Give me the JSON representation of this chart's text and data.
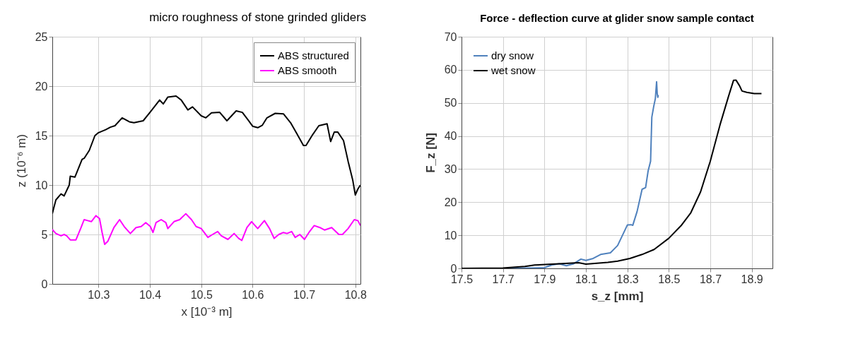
{
  "chart_data": [
    {
      "type": "line",
      "title": "micro roughness of stone grinded gliders",
      "xlabel": "x [10⁻³ m]",
      "ylabel": "z (10⁻⁶ m)",
      "xlim": [
        10.21,
        10.81
      ],
      "ylim": [
        0,
        25
      ],
      "xticks": [
        10.3,
        10.4,
        10.5,
        10.6,
        10.7,
        10.8
      ],
      "yticks": [
        0,
        5,
        10,
        15,
        20,
        25
      ],
      "grid": true,
      "legend": "top right",
      "series": [
        {
          "name": "ABS structured",
          "color": "#000000",
          "x": [
            10.21,
            10.217,
            10.227,
            10.233,
            10.243,
            10.245,
            10.254,
            10.268,
            10.272,
            10.282,
            10.293,
            10.3,
            10.314,
            10.323,
            10.332,
            10.346,
            10.36,
            10.369,
            10.387,
            10.401,
            10.419,
            10.426,
            10.435,
            10.451,
            10.461,
            10.474,
            10.483,
            10.5,
            10.509,
            10.52,
            10.536,
            10.55,
            10.568,
            10.58,
            10.591,
            10.6,
            10.61,
            10.619,
            10.628,
            10.644,
            10.66,
            10.674,
            10.685,
            10.699,
            10.704,
            10.717,
            10.729,
            10.745,
            10.752,
            10.759,
            10.766,
            10.777,
            10.786,
            10.795,
            10.8,
            10.805,
            10.81
          ],
          "values": [
            7.1,
            8.5,
            9.1,
            8.9,
            10,
            10.9,
            10.8,
            12.6,
            12.7,
            13.5,
            15,
            15.3,
            15.6,
            15.85,
            16,
            16.8,
            16.4,
            16.3,
            16.5,
            17.4,
            18.6,
            18.2,
            18.9,
            19.0,
            18.6,
            17.6,
            17.9,
            17.0,
            16.8,
            17.3,
            17.35,
            16.5,
            17.5,
            17.35,
            16.6,
            15.95,
            15.8,
            16.05,
            16.8,
            17.25,
            17.2,
            16.3,
            15.3,
            14.0,
            14.0,
            15.1,
            16,
            16.2,
            14.4,
            15.35,
            15.35,
            14.5,
            12.4,
            10.5,
            9.0,
            9.6,
            10
          ]
        },
        {
          "name": "ABS smooth",
          "color": "#ff00ff",
          "x": [
            10.21,
            10.217,
            10.227,
            10.233,
            10.238,
            10.245,
            10.256,
            10.266,
            10.272,
            10.279,
            10.286,
            10.295,
            10.302,
            10.307,
            10.312,
            10.318,
            10.33,
            10.341,
            10.35,
            10.362,
            10.373,
            10.383,
            10.392,
            10.401,
            10.406,
            10.412,
            10.422,
            10.431,
            10.435,
            10.447,
            10.458,
            10.47,
            10.481,
            10.49,
            10.5,
            10.513,
            10.522,
            10.532,
            10.539,
            10.552,
            10.564,
            10.573,
            10.579,
            10.589,
            10.598,
            10.61,
            10.623,
            10.633,
            10.642,
            10.651,
            10.66,
            10.667,
            10.676,
            10.683,
            10.692,
            10.701,
            10.711,
            10.72,
            10.731,
            10.74,
            10.754,
            10.768,
            10.775,
            10.786,
            10.798,
            10.805,
            10.81
          ],
          "values": [
            5.5,
            5.1,
            4.86,
            5.0,
            4.86,
            4.45,
            4.45,
            5.7,
            6.5,
            6.4,
            6.3,
            6.9,
            6.6,
            5.2,
            4.0,
            4.3,
            5.7,
            6.5,
            5.8,
            5.1,
            5.7,
            5.8,
            6.2,
            5.8,
            5.2,
            6.2,
            6.5,
            6.2,
            5.6,
            6.3,
            6.5,
            7.1,
            6.5,
            5.8,
            5.6,
            4.7,
            5.0,
            5.3,
            4.86,
            4.5,
            5.1,
            4.6,
            4.4,
            5.7,
            6.3,
            5.6,
            6.4,
            5.6,
            4.6,
            5.0,
            5.2,
            5.1,
            5.3,
            4.7,
            5.0,
            4.5,
            5.3,
            5.9,
            5.7,
            5.45,
            5.7,
            5.0,
            5.0,
            5.6,
            6.5,
            6.4,
            5.9
          ]
        }
      ]
    },
    {
      "type": "line",
      "title": "Force - deflection curve at glider snow sample contact",
      "xlabel": "s_z [mm]",
      "ylabel": "F_z [N]",
      "xlim": [
        17.5,
        19.0
      ],
      "ylim": [
        0,
        70
      ],
      "xticks": [
        17.5,
        17.7,
        17.9,
        18.1,
        18.3,
        18.5,
        18.7,
        18.9
      ],
      "yticks": [
        0,
        10,
        20,
        30,
        40,
        50,
        60,
        70
      ],
      "grid": true,
      "legend": "top left",
      "series": [
        {
          "name": "dry snow",
          "color": "#4f81bd",
          "x": [
            17.712,
            17.9,
            17.935,
            17.971,
            18.006,
            18.041,
            18.076,
            18.1,
            18.135,
            18.171,
            18.218,
            18.253,
            18.3,
            18.318,
            18.326,
            18.347,
            18.371,
            18.388,
            18.4,
            18.412,
            18.418,
            18.427,
            18.435,
            18.441,
            18.444,
            18.447,
            18.449
          ],
          "values": [
            0,
            0.2,
            1.0,
            1.4,
            0.8,
            1.4,
            2.8,
            2.4,
            3.0,
            4.2,
            4.7,
            6.9,
            13.1,
            13.2,
            13.0,
            17.2,
            23.9,
            24.4,
            29.4,
            32.4,
            45.7,
            48.9,
            51.3,
            56.4,
            52.8,
            51.7,
            52.4
          ]
        },
        {
          "name": "wet snow",
          "color": "#000000",
          "x": [
            17.5,
            17.7,
            17.806,
            17.853,
            17.971,
            18.065,
            18.1,
            18.206,
            18.253,
            18.312,
            18.371,
            18.429,
            18.5,
            18.559,
            18.606,
            18.653,
            18.7,
            18.747,
            18.788,
            18.812,
            18.824,
            18.841,
            18.853,
            18.876,
            18.912,
            18.947
          ],
          "values": [
            0,
            0.1,
            0.6,
            1.0,
            1.4,
            1.7,
            1.3,
            1.8,
            2.2,
            3.0,
            4.2,
            5.7,
            9.1,
            12.9,
            16.8,
            23.1,
            32.4,
            43.4,
            52.0,
            56.8,
            56.9,
            55.2,
            53.6,
            53.2,
            52.8,
            52.8
          ]
        }
      ]
    }
  ]
}
